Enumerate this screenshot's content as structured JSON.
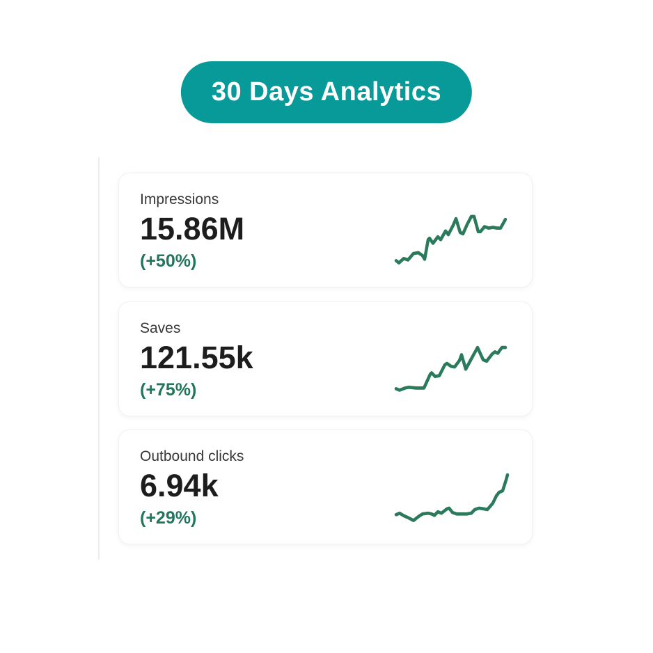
{
  "badge": {
    "label": "30 Days Analytics"
  },
  "colors": {
    "badge_bg": "#089a99",
    "badge_text": "#ffffff",
    "sparkline_stroke": "#2b7a5c",
    "delta_text": "#21765c",
    "label_text": "#383838",
    "value_text": "#1d1d1d",
    "card_bg": "#ffffff",
    "card_border": "#f1f1f1",
    "divider": "#ececec"
  },
  "cards": [
    {
      "label": "Impressions",
      "value": "15.86M",
      "delta": "(+50%)"
    },
    {
      "label": "Saves",
      "value": "121.55k",
      "delta": "(+75%)"
    },
    {
      "label": "Outbound clicks",
      "value": "6.94k",
      "delta": "(+29%)"
    }
  ],
  "chart_data": [
    {
      "type": "line",
      "metric": "Impressions",
      "total": "15.86M",
      "change_percent": 50,
      "legend": "none",
      "axes": "none (sparkline)",
      "points": [
        [
          0,
          61
        ],
        [
          4,
          64
        ],
        [
          11,
          58
        ],
        [
          17,
          60
        ],
        [
          25,
          51
        ],
        [
          32,
          50
        ],
        [
          38,
          54
        ],
        [
          41,
          59
        ],
        [
          46,
          32
        ],
        [
          48,
          30
        ],
        [
          53,
          37
        ],
        [
          60,
          28
        ],
        [
          64,
          32
        ],
        [
          71,
          20
        ],
        [
          75,
          25
        ],
        [
          82,
          12
        ],
        [
          86,
          3
        ],
        [
          92,
          22
        ],
        [
          96,
          24
        ],
        [
          102,
          11
        ],
        [
          108,
          0
        ],
        [
          112,
          0
        ],
        [
          118,
          21
        ],
        [
          121,
          21
        ],
        [
          127,
          14
        ],
        [
          133,
          16
        ],
        [
          139,
          15
        ],
        [
          145,
          16
        ],
        [
          150,
          16
        ],
        [
          157,
          4
        ]
      ]
    },
    {
      "type": "line",
      "metric": "Saves",
      "total": "121.55k",
      "change_percent": 75,
      "legend": "none",
      "axes": "none (sparkline)",
      "points": [
        [
          0,
          60
        ],
        [
          5,
          62
        ],
        [
          13,
          59
        ],
        [
          18,
          58
        ],
        [
          29,
          59
        ],
        [
          40,
          59
        ],
        [
          49,
          40
        ],
        [
          51,
          38
        ],
        [
          56,
          43
        ],
        [
          62,
          42
        ],
        [
          70,
          27
        ],
        [
          73,
          25
        ],
        [
          79,
          29
        ],
        [
          84,
          30
        ],
        [
          91,
          21
        ],
        [
          94,
          13
        ],
        [
          100,
          33
        ],
        [
          109,
          17
        ],
        [
          117,
          3
        ],
        [
          125,
          20
        ],
        [
          130,
          22
        ],
        [
          138,
          12
        ],
        [
          142,
          9
        ],
        [
          146,
          11
        ],
        [
          152,
          3
        ],
        [
          157,
          3
        ]
      ]
    },
    {
      "type": "line",
      "metric": "Outbound clicks",
      "total": "6.94k",
      "change_percent": 29,
      "legend": "none",
      "axes": "none (sparkline)",
      "points": [
        [
          0,
          57
        ],
        [
          5,
          55
        ],
        [
          12,
          59
        ],
        [
          17,
          61
        ],
        [
          25,
          65
        ],
        [
          33,
          59
        ],
        [
          38,
          56
        ],
        [
          46,
          55
        ],
        [
          51,
          56
        ],
        [
          55,
          58
        ],
        [
          60,
          53
        ],
        [
          65,
          55
        ],
        [
          73,
          49
        ],
        [
          76,
          48
        ],
        [
          81,
          54
        ],
        [
          87,
          56
        ],
        [
          94,
          56
        ],
        [
          102,
          56
        ],
        [
          108,
          55
        ],
        [
          113,
          50
        ],
        [
          119,
          48
        ],
        [
          126,
          49
        ],
        [
          131,
          50
        ],
        [
          139,
          41
        ],
        [
          144,
          31
        ],
        [
          148,
          26
        ],
        [
          151,
          25
        ],
        [
          153,
          24
        ],
        [
          158,
          9
        ],
        [
          160,
          2
        ]
      ]
    }
  ]
}
